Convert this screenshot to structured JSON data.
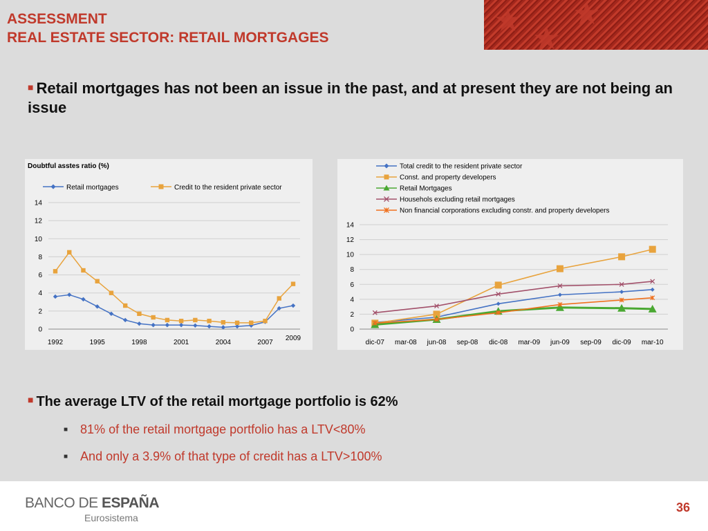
{
  "header": {
    "title_line1": "ASSESSMENT",
    "title_line2": "REAL ESTATE SECTOR: RETAIL MORTGAGES"
  },
  "bullets": {
    "main": "Retail mortgages has not been an issue in the past, and at present they are not being an issue",
    "ltv": "The average LTV of the retail mortgage portfolio is 62%",
    "sub1": "81% of the retail mortgage portfolio has a LTV<80%",
    "sub2": "And only a 3.9% of that type of credit has a LTV>100%"
  },
  "footer": {
    "brand_light": "BANCO DE ",
    "brand_bold": "ESPAÑA",
    "brand_sub": "Eurosistema",
    "page": "36"
  },
  "chart_data": [
    {
      "type": "line",
      "title": "Doubtful asstes ratio (%)",
      "x": [
        1992,
        1993,
        1994,
        1995,
        1996,
        1997,
        1998,
        1999,
        2000,
        2001,
        2002,
        2003,
        2004,
        2005,
        2006,
        2007,
        2008,
        2009
      ],
      "xticks": [
        "1992",
        "1995",
        "1998",
        "2001",
        "2004",
        "2007",
        "2009"
      ],
      "ylim": [
        0,
        14
      ],
      "yticks": [
        0,
        2,
        4,
        6,
        8,
        10,
        12,
        14
      ],
      "grid": true,
      "legend": "top",
      "series": [
        {
          "name": "Retail mortgages",
          "color": "#4472c4",
          "marker": "diamond",
          "values": [
            3.6,
            3.8,
            3.3,
            2.5,
            1.7,
            1.0,
            0.6,
            0.45,
            0.45,
            0.45,
            0.4,
            0.3,
            0.2,
            0.3,
            0.4,
            0.8,
            2.3,
            2.6
          ]
        },
        {
          "name": "Credit to the resident private sector",
          "color": "#e8a33d",
          "marker": "square",
          "values": [
            6.4,
            8.5,
            6.5,
            5.3,
            4.0,
            2.6,
            1.7,
            1.3,
            1.0,
            0.9,
            1.0,
            0.9,
            0.75,
            0.7,
            0.7,
            0.9,
            3.4,
            5.0
          ]
        }
      ]
    },
    {
      "type": "line",
      "categories": [
        "dic-07",
        "mar-08",
        "jun-08",
        "sep-08",
        "dic-08",
        "mar-09",
        "jun-09",
        "sep-09",
        "dic-09",
        "mar-10"
      ],
      "ylim": [
        0,
        14
      ],
      "yticks": [
        0,
        2,
        4,
        6,
        8,
        10,
        12,
        14
      ],
      "grid": true,
      "legend": "top",
      "series": [
        {
          "name": "Total credit to the resident private sector",
          "color": "#4472c4",
          "marker": "diamond",
          "points": [
            [
              0,
              0.9
            ],
            [
              2,
              1.6
            ],
            [
              4,
              3.4
            ],
            [
              6,
              4.6
            ],
            [
              8,
              5.0
            ],
            [
              9,
              5.3
            ]
          ]
        },
        {
          "name": "Const. and property developers",
          "color": "#e8a33d",
          "marker": "square",
          "points": [
            [
              0,
              0.8
            ],
            [
              2,
              2.0
            ],
            [
              4,
              5.9
            ],
            [
              6,
              8.1
            ],
            [
              8,
              9.7
            ],
            [
              9,
              10.7
            ]
          ]
        },
        {
          "name": "Retail Mortgages",
          "color": "#4aa832",
          "marker": "triangle",
          "points": [
            [
              0,
              0.6
            ],
            [
              2,
              1.3
            ],
            [
              4,
              2.4
            ],
            [
              6,
              2.9
            ],
            [
              8,
              2.8
            ],
            [
              9,
              2.7
            ]
          ]
        },
        {
          "name": "Househols excluding retail mortgages",
          "color": "#a2506a",
          "marker": "x",
          "points": [
            [
              0,
              2.2
            ],
            [
              2,
              3.1
            ],
            [
              4,
              4.7
            ],
            [
              6,
              5.8
            ],
            [
              8,
              6.0
            ],
            [
              9,
              6.4
            ]
          ]
        },
        {
          "name": "Non financial corporations excluding constr. and property developers",
          "color": "#f0711e",
          "marker": "star",
          "points": [
            [
              0,
              0.8
            ],
            [
              2,
              1.3
            ],
            [
              4,
              2.2
            ],
            [
              6,
              3.3
            ],
            [
              8,
              3.9
            ],
            [
              9,
              4.2
            ]
          ]
        }
      ]
    }
  ]
}
